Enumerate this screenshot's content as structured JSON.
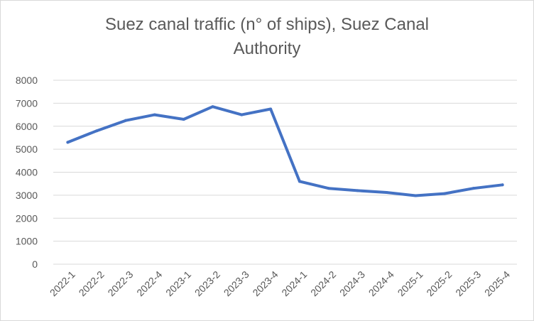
{
  "chart_data": {
    "type": "line",
    "title_lines": [
      "Suez canal traffic (n° of ships), Suez Canal",
      "Authority"
    ],
    "xlabel": "",
    "ylabel": "",
    "ylim": [
      0,
      8000
    ],
    "yticks": [
      0,
      1000,
      2000,
      3000,
      4000,
      5000,
      6000,
      7000,
      8000
    ],
    "grid": true,
    "categories": [
      "2022-1",
      "2022-2",
      "2022-3",
      "2022-4",
      "2023-1",
      "2023-2",
      "2023-3",
      "2023-4",
      "2024-1",
      "2024-2",
      "2024-3",
      "2024-4",
      "2025-1",
      "2025-2",
      "2025-3",
      "2025-4"
    ],
    "series": [
      {
        "name": "Suez canal traffic",
        "color": "#4472c4",
        "values": [
          5300,
          5800,
          6250,
          6500,
          6300,
          6850,
          6500,
          6750,
          3600,
          3300,
          3200,
          3120,
          2980,
          3070,
          3300,
          3450
        ]
      }
    ]
  }
}
